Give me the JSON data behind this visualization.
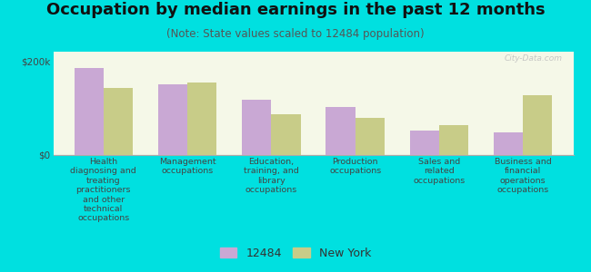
{
  "title": "Occupation by median earnings in the past 12 months",
  "subtitle": "(Note: State values scaled to 12484 population)",
  "background_color": "#00e0e0",
  "plot_bg_top": "#f5f8e8",
  "plot_bg_bottom": "#e8edd8",
  "bar_color_12484": "#c9a8d4",
  "bar_color_ny": "#c8cc88",
  "watermark": "City-Data.com",
  "categories": [
    "Health\ndiagnosing and\ntreating\npractitioners\nand other\ntechnical\noccupations",
    "Management\noccupations",
    "Education,\ntraining, and\nlibrary\noccupations",
    "Production\noccupations",
    "Sales and\nrelated\noccupations",
    "Business and\nfinancial\noperations\noccupations"
  ],
  "values_12484": [
    185000,
    150000,
    118000,
    103000,
    53000,
    48000
  ],
  "values_ny": [
    142000,
    155000,
    87000,
    80000,
    63000,
    128000
  ],
  "ylim": [
    0,
    220000
  ],
  "yticks": [
    0,
    200000
  ],
  "ytick_labels": [
    "$0",
    "$200k"
  ],
  "legend_labels": [
    "12484",
    "New York"
  ],
  "bar_width": 0.35,
  "title_fontsize": 13,
  "subtitle_fontsize": 8.5,
  "axis_label_fontsize": 7.5,
  "legend_fontsize": 9
}
